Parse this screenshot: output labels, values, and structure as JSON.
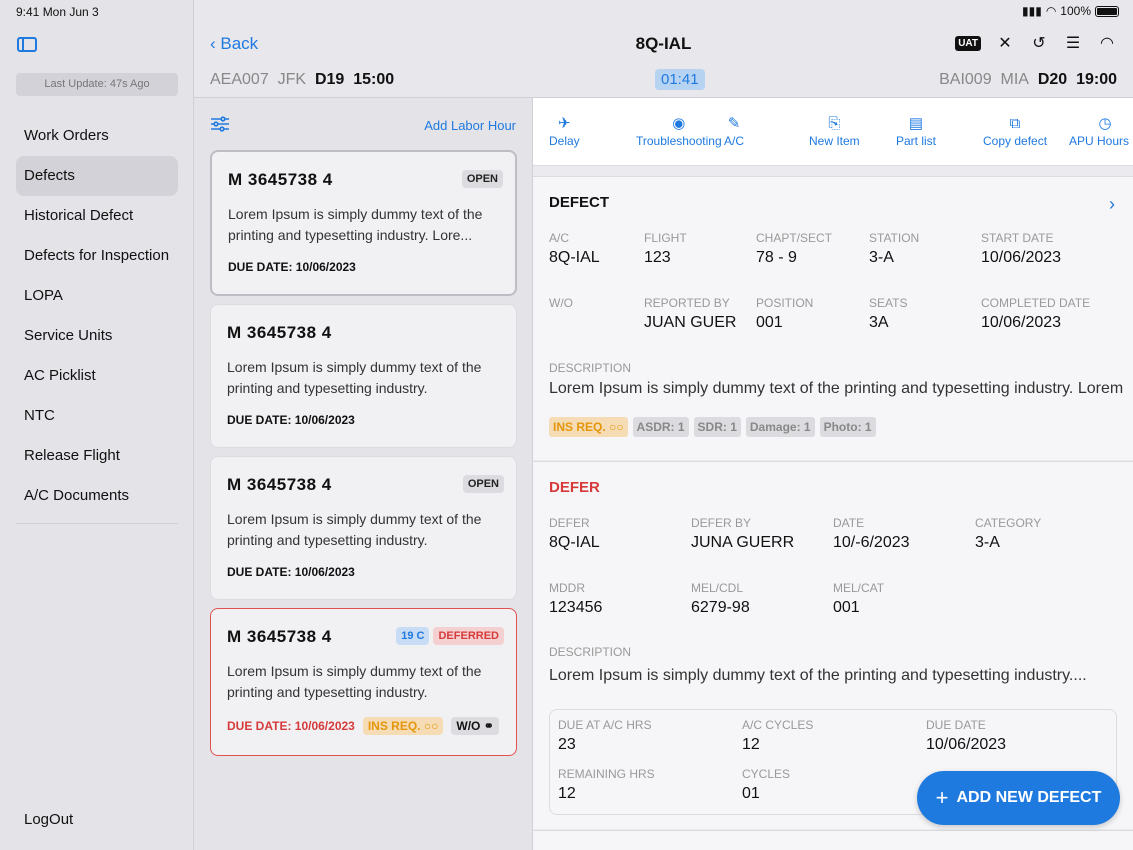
{
  "status": {
    "time": "9:41  Mon Jun 3",
    "battery": "100%"
  },
  "sidebar": {
    "last_update": "Last Update: 47s Ago",
    "items": [
      {
        "label": "Work Orders"
      },
      {
        "label": "Defects"
      },
      {
        "label": "Historical Defect"
      },
      {
        "label": "Defects for Inspection"
      },
      {
        "label": "LOPA"
      },
      {
        "label": "Service Units"
      },
      {
        "label": "AC Picklist"
      },
      {
        "label": "NTC"
      },
      {
        "label": "Release Flight"
      },
      {
        "label": "A/C Documents"
      }
    ],
    "logout": "LogOut"
  },
  "header": {
    "back": "Back",
    "title": "8Q-IAL",
    "uat": "UAT",
    "inbound": {
      "flight": "AEA007",
      "station": "JFK",
      "day": "D19",
      "time": "15:00"
    },
    "timer": "01:41",
    "outbound": {
      "flight": "BAI009",
      "station": "MIA",
      "day": "D20",
      "time": "19:00"
    }
  },
  "list": {
    "add_labor": "Add Labor Hour",
    "cards": [
      {
        "id": "M  3645738  4",
        "badge": "OPEN",
        "desc": "Lorem Ipsum is simply dummy text of the printing and typesetting industry. Lore...",
        "due": "DUE DATE: 10/06/2023"
      },
      {
        "id": "M  3645738  4",
        "desc": "Lorem Ipsum is simply dummy text of the printing and typesetting industry.",
        "due": "DUE DATE: 10/06/2023"
      },
      {
        "id": "M  3645738  4",
        "badge": "OPEN",
        "desc": "Lorem Ipsum is simply dummy text of the printing and typesetting industry.",
        "due": "DUE DATE: 10/06/2023"
      },
      {
        "id": "M  3645738  4",
        "badge1": "19 C",
        "badge2": "DEFERRED",
        "desc": "Lorem Ipsum is simply dummy text of the printing and typesetting industry.",
        "due": "DUE DATE: 10/06/2023",
        "ins": "INS REQ.",
        "wo": "W/O"
      }
    ]
  },
  "actions": [
    {
      "label": "Delay",
      "icon": "plane-icon"
    },
    {
      "label": "Troubleshooting",
      "icon": "gauge-icon"
    },
    {
      "label": "A/C",
      "icon": "brush-icon"
    },
    {
      "label": "New Item",
      "icon": "new-item-icon"
    },
    {
      "label": "Part list",
      "icon": "document-icon"
    },
    {
      "label": "Copy defect",
      "icon": "copy-icon"
    },
    {
      "label": "APU Hours C",
      "icon": "clock-icon"
    }
  ],
  "defect": {
    "title": "DEFECT",
    "ac_label": "A/C",
    "ac": "8Q-IAL",
    "flight_label": "FLIGHT",
    "flight": "123",
    "chapt_label": "CHAPT/SECT",
    "chapt": "78 - 9",
    "station_label": "STATION",
    "station": "3-A",
    "start_label": "START DATE",
    "start": "10/06/2023",
    "wo_label": "W/O",
    "reported_label": "REPORTED BY",
    "reported": "JUAN GUER",
    "position_label": "POSITION",
    "position": "001",
    "seats_label": "SEATS",
    "seats": "3A",
    "completed_label": "COMPLETED DATE",
    "completed": "10/06/2023",
    "desc_label": "DESCRIPTION",
    "desc": "Lorem Ipsum is simply dummy text of the printing and typesetting industry. Lorem",
    "tags": [
      "INS REQ.",
      "ASDR: 1",
      "SDR: 1",
      "Damage: 1",
      "Photo: 1"
    ]
  },
  "defer": {
    "title": "DEFER",
    "defer_label": "DEFER",
    "defer": "8Q-IAL",
    "by_label": "DEFER BY",
    "by": "JUNA GUERR",
    "date_label": "DATE",
    "date": "10/-6/2023",
    "cat_label": "CATEGORY",
    "cat": "3-A",
    "mddr_label": "MDDR",
    "mddr": "123456",
    "mel_label": "MEL/CDL",
    "mel": "6279-98",
    "melcat_label": "MEL/CAT",
    "melcat": "001",
    "desc_label": "DESCRIPTION",
    "desc": "Lorem Ipsum is simply dummy text of the printing and typesetting industry....",
    "due_hrs_label": "DUE AT A/C HRS",
    "due_hrs": "23",
    "cycles_label": "A/C CYCLES",
    "cycles": "12",
    "due_date_label": "DUE DATE",
    "due_date": "10/06/2023",
    "rem_hrs_label": "REMAINING HRS",
    "rem_hrs": "12",
    "rem_cycles_label": "CYCLES",
    "rem_cycles": "01"
  },
  "fab": {
    "label": "ADD NEW DEFECT"
  }
}
